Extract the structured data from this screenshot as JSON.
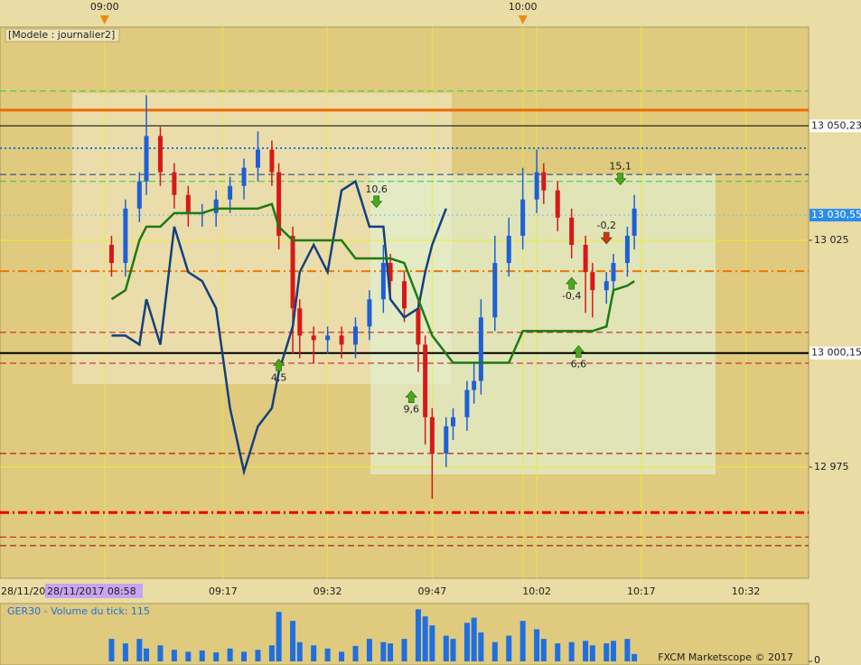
{
  "chart_data": [
    {
      "type": "candlestick",
      "title": "[Modele : journalier2]",
      "x": [
        "09:01",
        "09:03",
        "09:05",
        "09:06",
        "09:08",
        "09:10",
        "09:12",
        "09:14",
        "09:16",
        "09:18",
        "09:20",
        "09:22",
        "09:24",
        "09:25",
        "09:27",
        "09:28",
        "09:30",
        "09:32",
        "09:34",
        "09:36",
        "09:38",
        "09:40",
        "09:41",
        "09:43",
        "09:45",
        "09:46",
        "09:47",
        "09:49",
        "09:50",
        "09:52",
        "09:53",
        "09:54",
        "09:56",
        "09:58",
        "10:00",
        "10:02",
        "10:03",
        "10:05",
        "10:07",
        "10:09",
        "10:10",
        "10:12",
        "10:13",
        "10:15",
        "10:16"
      ],
      "open": [
        13024,
        13020,
        13032,
        13038,
        13048,
        13040,
        13035,
        13031,
        13031,
        13034,
        13037,
        13041,
        13045,
        13040,
        13026,
        13010,
        13004,
        13003,
        13004,
        13002,
        13006,
        13012,
        13020,
        13016,
        13010,
        13002,
        12986,
        12978,
        12984,
        12986,
        12992,
        12994,
        13008,
        13020,
        13026,
        13034,
        13040,
        13036,
        13030,
        13024,
        13018,
        13014,
        13016,
        13020,
        13026
      ],
      "high": [
        13026,
        13034,
        13040,
        13057,
        13050,
        13042,
        13037,
        13033,
        13036,
        13039,
        13043,
        13049,
        13047,
        13042,
        13028,
        13012,
        13006,
        13006,
        13006,
        13008,
        13014,
        13024,
        13022,
        13018,
        13012,
        13004,
        12988,
        12986,
        12988,
        12994,
        12998,
        13012,
        13026,
        13030,
        13041,
        13045,
        13042,
        13038,
        13032,
        13026,
        13020,
        13018,
        13022,
        13028,
        13035
      ],
      "low": [
        13017,
        13017,
        13029,
        13035,
        13037,
        13032,
        13028,
        13028,
        13028,
        13031,
        13034,
        13038,
        13037,
        13023,
        13000,
        12999,
        12998,
        13000,
        12999,
        12999,
        13003,
        13009,
        13013,
        13007,
        12996,
        12980,
        12968,
        12975,
        12981,
        12983,
        12989,
        12991,
        13005,
        13017,
        13023,
        13031,
        13033,
        13027,
        13021,
        13009,
        13008,
        13011,
        13013,
        13017,
        13023
      ],
      "close": [
        13020,
        13032,
        13038,
        13048,
        13040,
        13035,
        13031,
        13031,
        13034,
        13037,
        13041,
        13045,
        13040,
        13026,
        13010,
        13004,
        13003,
        13004,
        13002,
        13006,
        13012,
        13020,
        13016,
        13010,
        13002,
        12986,
        12978,
        12984,
        12986,
        12992,
        12994,
        13008,
        13020,
        13026,
        13034,
        13040,
        13036,
        13030,
        13024,
        13018,
        13014,
        13016,
        13020,
        13026,
        13032
      ],
      "up_color": "#1f5fd6",
      "down_color": "#d81818",
      "series": [
        {
          "color": "#14407e",
          "values": [
            13004,
            13004,
            13002,
            13012,
            13002,
            13028,
            13018,
            13016,
            13010,
            12988,
            12974,
            12984,
            12988,
            12996,
            13006,
            13018,
            13024,
            13018,
            13036,
            13038,
            13028,
            13028,
            13012,
            13008,
            13010,
            13018,
            13024,
            13032,
            null,
            null,
            null,
            null,
            null,
            null,
            null,
            null,
            null,
            null,
            null,
            null,
            null,
            null,
            null,
            null,
            null
          ]
        },
        {
          "color": "#1e7a12",
          "values": [
            13012,
            13014,
            13025,
            13028,
            13028,
            13031,
            13031,
            13031,
            13032,
            13032,
            13032,
            13032,
            13033,
            13028,
            13025,
            13025,
            13025,
            13025,
            13025,
            13021,
            13021,
            13021,
            13021,
            13020,
            13012,
            13008,
            13004,
            13000,
            12998,
            12998,
            12998,
            12998,
            12998,
            12998,
            13005,
            13005,
            13005,
            13005,
            13005,
            13005,
            13005,
            13006,
            13014,
            13015,
            13016
          ]
        }
      ],
      "xlim": [
        "08:45",
        "10:41"
      ],
      "xticks": [
        "09:17",
        "09:32",
        "09:47",
        "10:02",
        "10:17",
        "10:32"
      ],
      "top_xticks": [
        "09:00",
        "10:00"
      ],
      "date_labels": [
        "28/11/20",
        "28/11/2017 08:58"
      ],
      "ylim": [
        12950.5,
        13072
      ],
      "yticks": [
        {
          "value": 13025,
          "label": "13 025"
        },
        {
          "value": 12975,
          "label": "12 975"
        }
      ],
      "grid": true,
      "levels": [
        {
          "value": 13057.9,
          "color": "#33cc33",
          "style": "dashed",
          "width": 1
        },
        {
          "value": 13053.7,
          "color": "#ee6a00",
          "style": "solid",
          "width": 3
        },
        {
          "value": 13050.23,
          "label": "13 050,23",
          "label_bg": "#ffffff",
          "color": "#000000",
          "style": "solid",
          "width": 1
        },
        {
          "value": 13045.3,
          "color": "#1a78d0",
          "style": "dotted",
          "width": 2
        },
        {
          "value": 13039.5,
          "color": "#1a3a7a",
          "style": "dashed",
          "width": 1
        },
        {
          "value": 13038,
          "color": "#33cc33",
          "style": "dashed",
          "width": 1
        },
        {
          "value": 13030.55,
          "label": "13 030,55",
          "label_bg": "#2a8cf0",
          "color": "#7fb8f0",
          "style": "dotted",
          "width": 1
        },
        {
          "value": 13018.2,
          "color": "#ee7700",
          "style": "dashdot",
          "width": 2
        },
        {
          "value": 13004.7,
          "color": "#cc1111",
          "style": "dashed",
          "width": 1
        },
        {
          "value": 13000.15,
          "label": "13 000,15",
          "label_bg": "#ffffff",
          "color": "#000000",
          "style": "solid",
          "width": 2
        },
        {
          "value": 12997.9,
          "color": "#cc1111",
          "style": "dashed",
          "width": 1
        },
        {
          "value": 12978,
          "color": "#990000",
          "style": "dashed",
          "width": 1
        },
        {
          "value": 12965,
          "color": "#ee0000",
          "style": "dashdot",
          "width": 3
        },
        {
          "value": 12959.6,
          "color": "#cc1111",
          "style": "dashed",
          "width": 1
        },
        {
          "value": 12957.7,
          "color": "#990000",
          "style": "dashed",
          "width": 1
        }
      ],
      "annotations": [
        {
          "text": "15,1",
          "x": "10:14",
          "y": 13037,
          "direction": "down",
          "color": "#4aa81c"
        },
        {
          "text": "10,6",
          "x": "09:39",
          "y": 13032,
          "direction": "down",
          "color": "#4aa81c"
        },
        {
          "text": "-0,2",
          "x": "10:12",
          "y": 13024,
          "direction": "down",
          "color": "#d83018"
        },
        {
          "text": "-0,4",
          "x": "10:07",
          "y": 13017,
          "direction": "up",
          "color": "#4aa81c"
        },
        {
          "text": "4,5",
          "x": "09:25",
          "y": 12999,
          "direction": "up",
          "color": "#4aa81c"
        },
        {
          "text": "9,6",
          "x": "09:44",
          "y": 12992,
          "direction": "up",
          "color": "#4aa81c"
        },
        {
          "text": "6,6",
          "x": "10:08",
          "y": 13002,
          "direction": "up",
          "color": "#4aa81c"
        }
      ]
    },
    {
      "type": "bar",
      "title": "GER30 - Volume du tick: 115",
      "x": [
        "09:01",
        "09:03",
        "09:05",
        "09:06",
        "09:08",
        "09:10",
        "09:12",
        "09:14",
        "09:16",
        "09:18",
        "09:20",
        "09:22",
        "09:24",
        "09:25",
        "09:27",
        "09:28",
        "09:30",
        "09:32",
        "09:34",
        "09:36",
        "09:38",
        "09:40",
        "09:41",
        "09:43",
        "09:45",
        "09:46",
        "09:47",
        "09:49",
        "09:50",
        "09:52",
        "09:53",
        "09:54",
        "09:56",
        "09:58",
        "10:00",
        "10:02",
        "10:03",
        "10:05",
        "10:07",
        "10:09",
        "10:10",
        "10:12",
        "10:13",
        "10:15",
        "10:16"
      ],
      "values": [
        350,
        280,
        350,
        200,
        250,
        180,
        150,
        170,
        140,
        200,
        150,
        180,
        250,
        770,
        630,
        300,
        250,
        200,
        150,
        240,
        350,
        300,
        280,
        350,
        810,
        700,
        560,
        400,
        350,
        600,
        680,
        450,
        300,
        400,
        630,
        500,
        350,
        280,
        300,
        320,
        250,
        280,
        320,
        350,
        115
      ],
      "color": "#1f6fe0",
      "xlim": [
        "08:45",
        "10:41"
      ],
      "ylim": [
        0,
        900
      ],
      "yticks": [
        0
      ],
      "footer": "FXCM Marketscope © 2017"
    }
  ]
}
